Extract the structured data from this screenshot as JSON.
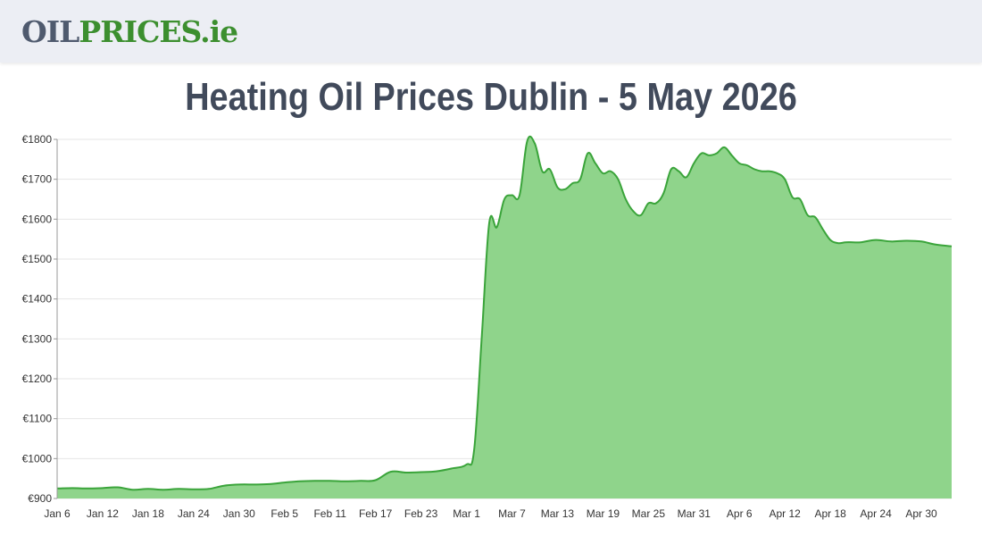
{
  "logo": {
    "part1": "OIL",
    "part2": "PRICES",
    "part3": ".ie"
  },
  "colors": {
    "line": "#3aa43a",
    "fill": "#8fd48b",
    "grid": "#e6e6e6",
    "title": "#414a5b"
  },
  "chart_data": {
    "type": "area",
    "title": "Heating Oil Prices Dublin - 5 May 2026",
    "xlabel": "",
    "ylabel": "",
    "ylim": [
      900,
      1800
    ],
    "y_ticks": [
      900,
      1000,
      1100,
      1200,
      1300,
      1400,
      1500,
      1600,
      1700,
      1800
    ],
    "y_tick_prefix": "€",
    "x_tick_labels": [
      "Jan 6",
      "Jan 12",
      "Jan 18",
      "Jan 24",
      "Jan 30",
      "Feb 5",
      "Feb 11",
      "Feb 17",
      "Feb 23",
      "Mar 1",
      "Mar 7",
      "Mar 13",
      "Mar 19",
      "Mar 25",
      "Mar 31",
      "Apr 6",
      "Apr 12",
      "Apr 18",
      "Apr 24",
      "Apr 30"
    ],
    "grid": true,
    "legend": "none",
    "series": [
      {
        "x": [
          "Jan 6",
          "Jan 8",
          "Jan 10",
          "Jan 12",
          "Jan 14",
          "Jan 16",
          "Jan 18",
          "Jan 20",
          "Jan 22",
          "Jan 24",
          "Jan 26",
          "Jan 28",
          "Jan 30",
          "Feb 1",
          "Feb 3",
          "Feb 5",
          "Feb 7",
          "Feb 9",
          "Feb 11",
          "Feb 13",
          "Feb 15",
          "Feb 17",
          "Feb 19",
          "Feb 21",
          "Feb 23",
          "Feb 25",
          "Feb 27",
          "Mar 1",
          "Mar 2",
          "Mar 3",
          "Mar 4",
          "Mar 5",
          "Mar 6",
          "Mar 7",
          "Mar 8",
          "Mar 9",
          "Mar 10",
          "Mar 11",
          "Mar 12",
          "Mar 13",
          "Mar 14",
          "Mar 15",
          "Mar 16",
          "Mar 17",
          "Mar 18",
          "Mar 19",
          "Mar 20",
          "Mar 21",
          "Mar 22",
          "Mar 23",
          "Mar 24",
          "Mar 25",
          "Mar 26",
          "Mar 27",
          "Mar 28",
          "Mar 29",
          "Mar 30",
          "Mar 31",
          "Apr 1",
          "Apr 2",
          "Apr 3",
          "Apr 4",
          "Apr 5",
          "Apr 6",
          "Apr 7",
          "Apr 8",
          "Apr 9",
          "Apr 10",
          "Apr 11",
          "Apr 12",
          "Apr 13",
          "Apr 14",
          "Apr 15",
          "Apr 16",
          "Apr 17",
          "Apr 18",
          "Apr 19",
          "Apr 20",
          "Apr 21",
          "Apr 22",
          "Apr 24",
          "Apr 26",
          "Apr 28",
          "Apr 30",
          "May 2",
          "May 4"
        ],
        "values": [
          925,
          926,
          925,
          926,
          928,
          922,
          924,
          922,
          924,
          923,
          924,
          932,
          935,
          935,
          936,
          940,
          943,
          944,
          944,
          943,
          944,
          946,
          967,
          965,
          966,
          968,
          975,
          985,
          1020,
          1300,
          1590,
          1580,
          1650,
          1660,
          1660,
          1795,
          1790,
          1720,
          1725,
          1680,
          1675,
          1690,
          1700,
          1765,
          1740,
          1715,
          1720,
          1700,
          1650,
          1620,
          1610,
          1640,
          1640,
          1665,
          1725,
          1720,
          1705,
          1740,
          1765,
          1760,
          1765,
          1780,
          1760,
          1740,
          1735,
          1725,
          1720,
          1720,
          1715,
          1700,
          1655,
          1650,
          1610,
          1605,
          1575,
          1548,
          1540,
          1542,
          1542,
          1542,
          1548,
          1544,
          1546,
          1544,
          1536,
          1532
        ]
      }
    ]
  }
}
